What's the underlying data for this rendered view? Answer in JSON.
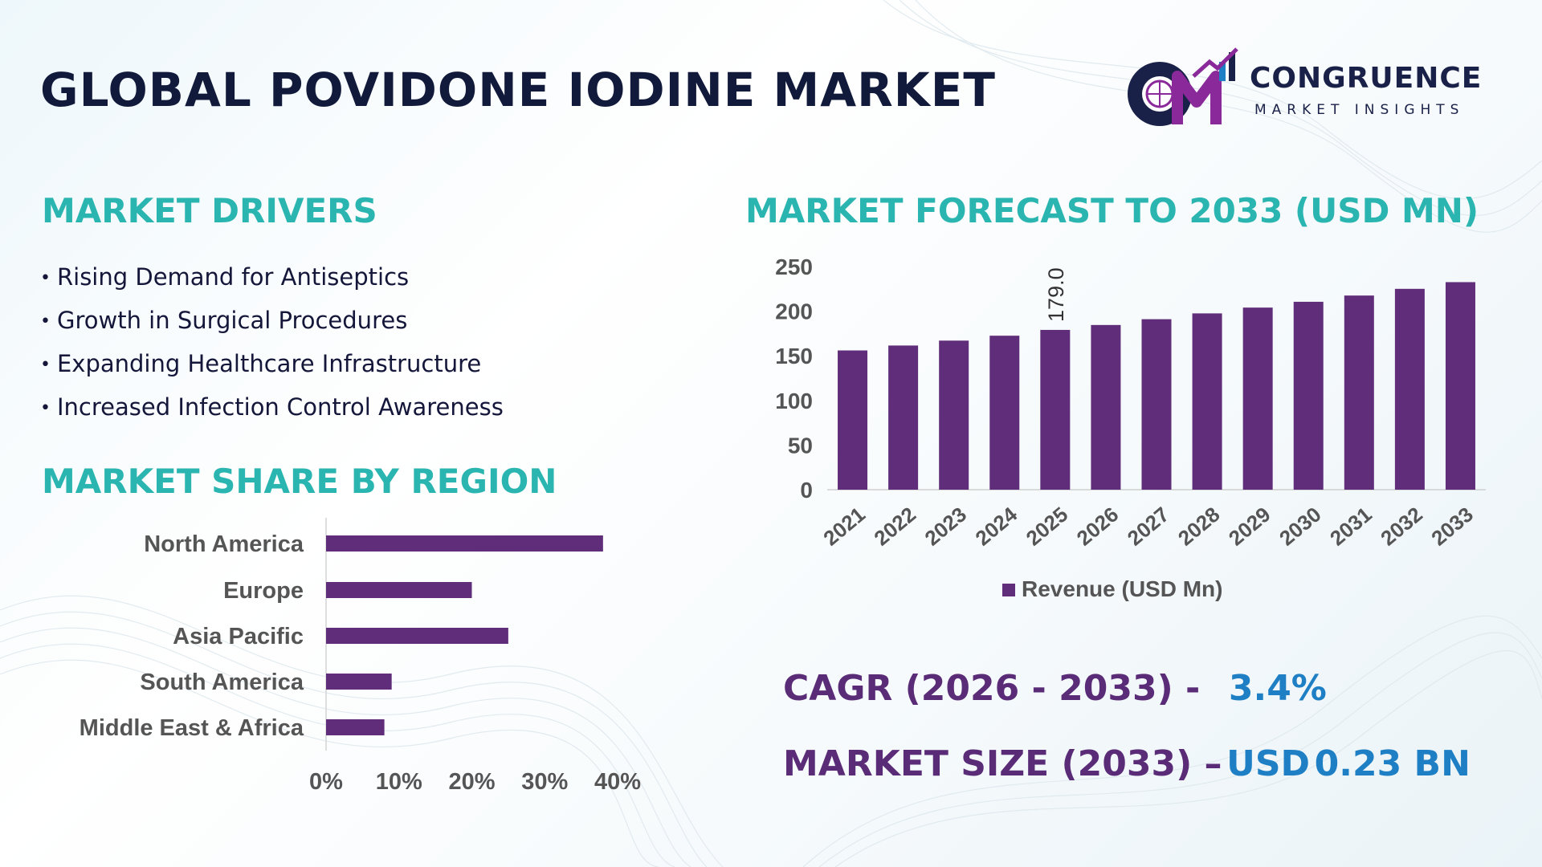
{
  "title": "GLOBAL POVIDONE IODINE MARKET",
  "logo": {
    "name": "CONGRUENCE",
    "tagline": "MARKET INSIGHTS",
    "colors": {
      "primary": "#1a2148",
      "accent": "#8a2a9a"
    }
  },
  "drivers": {
    "title": "MARKET DRIVERS",
    "items": [
      "Rising Demand for Antiseptics",
      "Growth in Surgical Procedures",
      "Expanding Healthcare Infrastructure",
      "Increased Infection Control Awareness"
    ]
  },
  "region": {
    "title": "MARKET SHARE BY REGION"
  },
  "forecast": {
    "title": "MARKET FORECAST TO 2033 (USD MN)"
  },
  "kpis": {
    "cagr_label": "CAGR (2026 - 2033) -",
    "cagr_value": "3.4%",
    "size_label": "MARKET SIZE (2033) –",
    "size_currency": "USD",
    "size_value": "0.23 BN"
  },
  "colors": {
    "bar": "#5f2d79",
    "heading": "#2bb5b0",
    "kpi_label": "#5a2c78",
    "kpi_value": "#1f7fc4",
    "title": "#111a3a"
  },
  "chart_data": [
    {
      "type": "bar",
      "orientation": "vertical",
      "categories": [
        "2021",
        "2022",
        "2023",
        "2024",
        "2025",
        "2026",
        "2027",
        "2028",
        "2029",
        "2030",
        "2031",
        "2032",
        "2033"
      ],
      "series": [
        {
          "name": "Revenue (USD Mn)",
          "values": [
            156.0,
            161.5,
            167.0,
            172.5,
            179.0,
            184.5,
            191.0,
            197.5,
            204.0,
            210.5,
            217.5,
            225.0,
            232.5
          ]
        }
      ],
      "data_labels": [
        {
          "category": "2025",
          "text": "179.0"
        }
      ],
      "yticks": [
        "0",
        "50",
        "100",
        "150",
        "200",
        "250"
      ],
      "ylim": [
        0,
        250
      ],
      "grid": false,
      "legend": "bottom"
    },
    {
      "type": "bar",
      "orientation": "horizontal",
      "categories": [
        "North America",
        "Europe",
        "Asia Pacific",
        "South America",
        "Middle East & Africa"
      ],
      "values": [
        38,
        20,
        25,
        9,
        8
      ],
      "xticks": [
        "0%",
        "10%",
        "20%",
        "30%",
        "40%"
      ],
      "xlim": [
        0,
        40
      ],
      "grid": false
    }
  ]
}
